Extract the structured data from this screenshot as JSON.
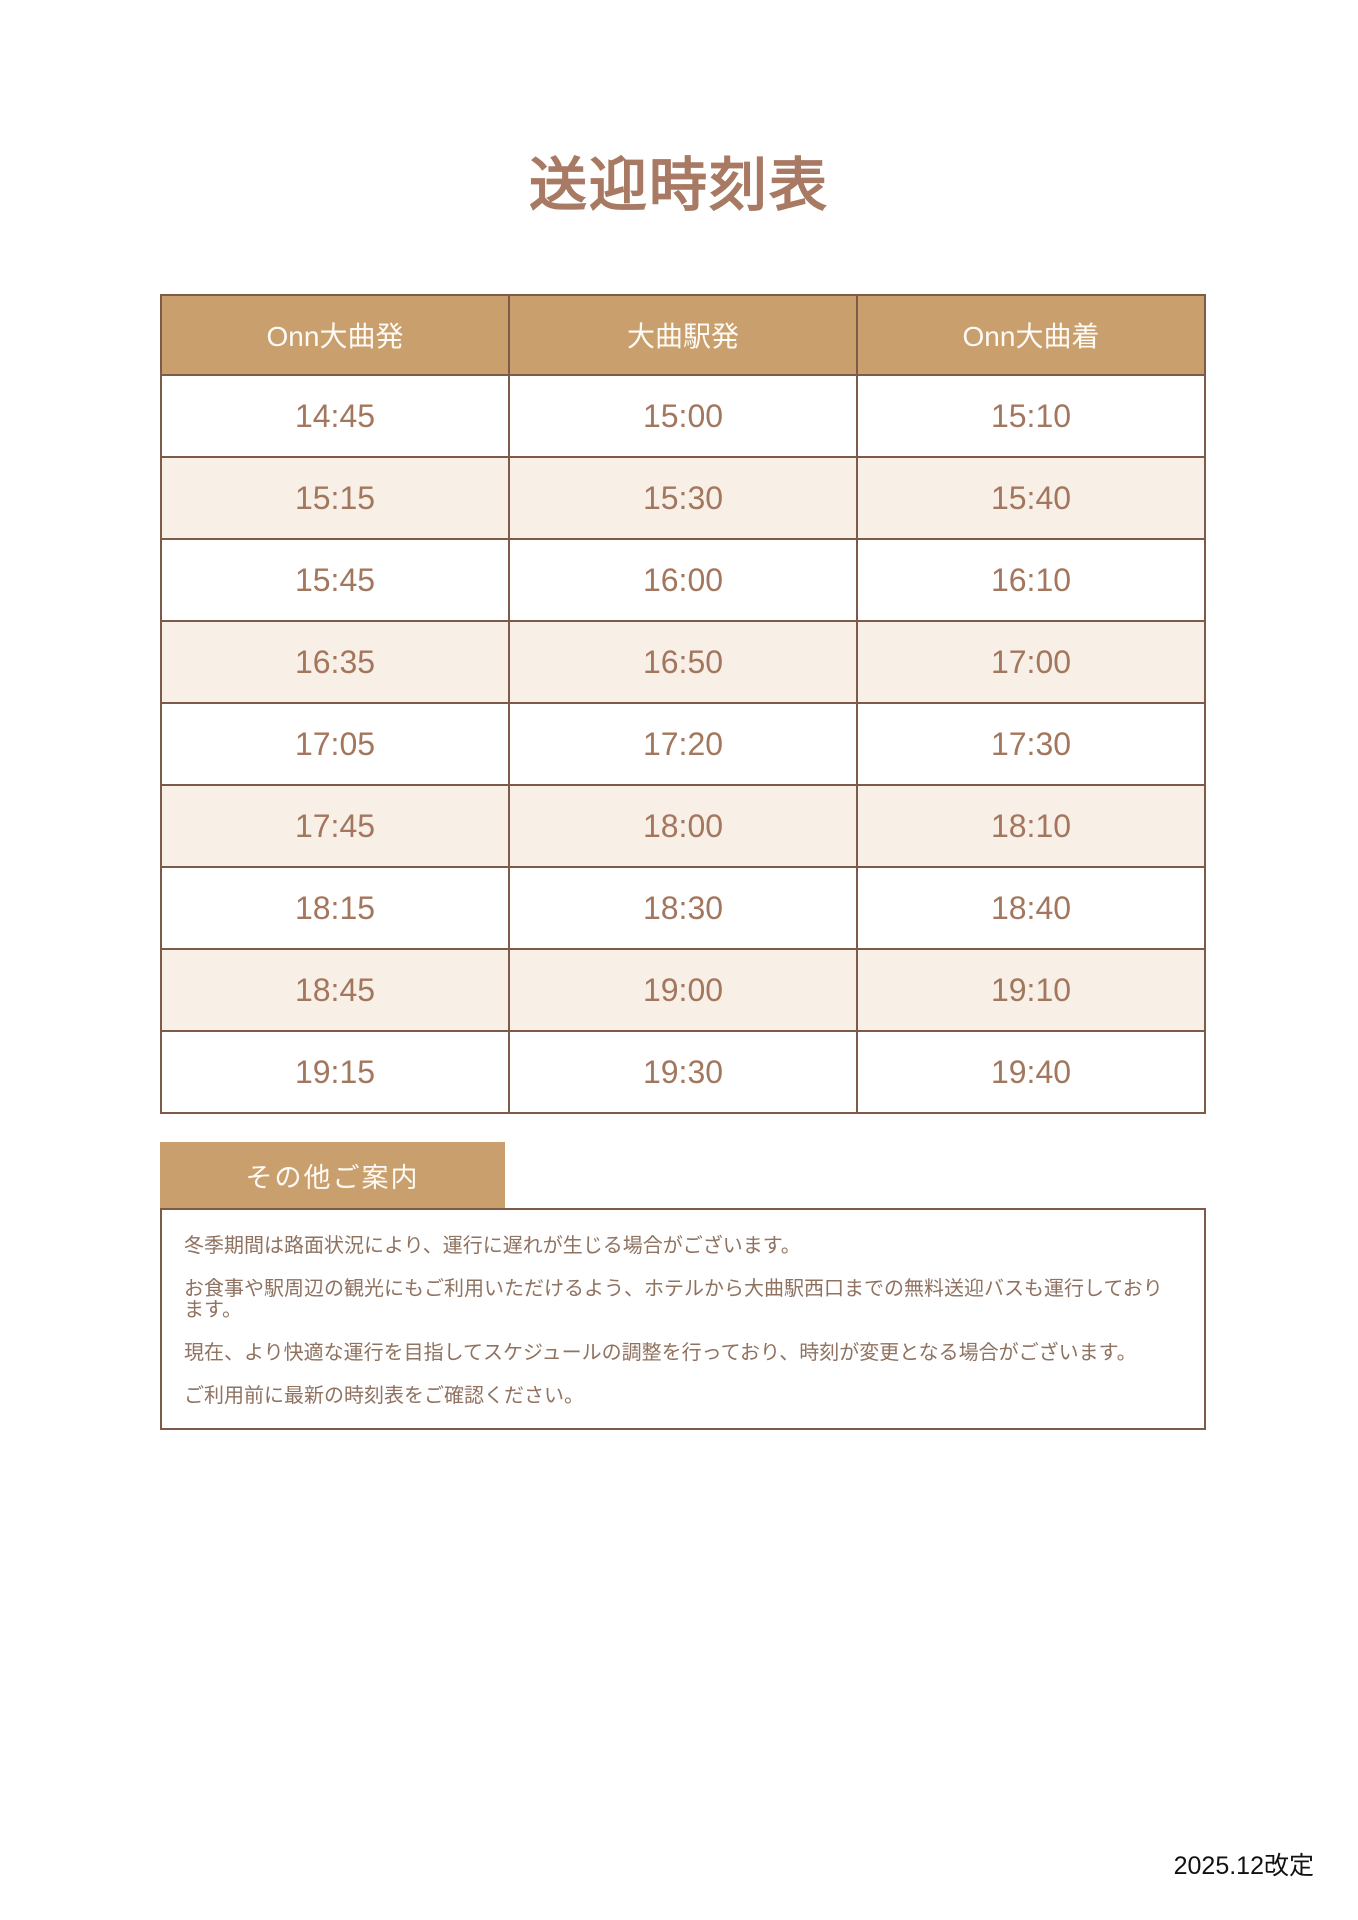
{
  "page": {
    "title": "送迎時刻表",
    "revision": "2025.12改定"
  },
  "timetable": {
    "headers": [
      "Onn大曲発",
      "大曲駅発",
      "Onn大曲着"
    ],
    "rows": [
      [
        "14:45",
        "15:00",
        "15:10"
      ],
      [
        "15:15",
        "15:30",
        "15:40"
      ],
      [
        "15:45",
        "16:00",
        "16:10"
      ],
      [
        "16:35",
        "16:50",
        "17:00"
      ],
      [
        "17:05",
        "17:20",
        "17:30"
      ],
      [
        "17:45",
        "18:00",
        "18:10"
      ],
      [
        "18:15",
        "18:30",
        "18:40"
      ],
      [
        "18:45",
        "19:00",
        "19:10"
      ],
      [
        "19:15",
        "19:30",
        "19:40"
      ]
    ]
  },
  "notice": {
    "heading": "その他ご案内",
    "lines": [
      "冬季期間は路面状況により、運行に遅れが生じる場合がございます。",
      "お食事や駅周辺の観光にもご利用いただけるよう、ホテルから大曲駅西口までの無料送迎バスも運行しております。",
      "現在、より快適な運行を目指してスケジュールの調整を行っており、時刻が変更となる場合がございます。",
      "ご利用前に最新の時刻表をご確認ください。"
    ]
  },
  "colors": {
    "accent_tan": "#c9a06d",
    "stripe_beige": "#f8efe6",
    "border_brown": "#7d5b48",
    "title_brown": "#a87963",
    "time_text": "#a3765e",
    "note_text": "#8f7260"
  }
}
